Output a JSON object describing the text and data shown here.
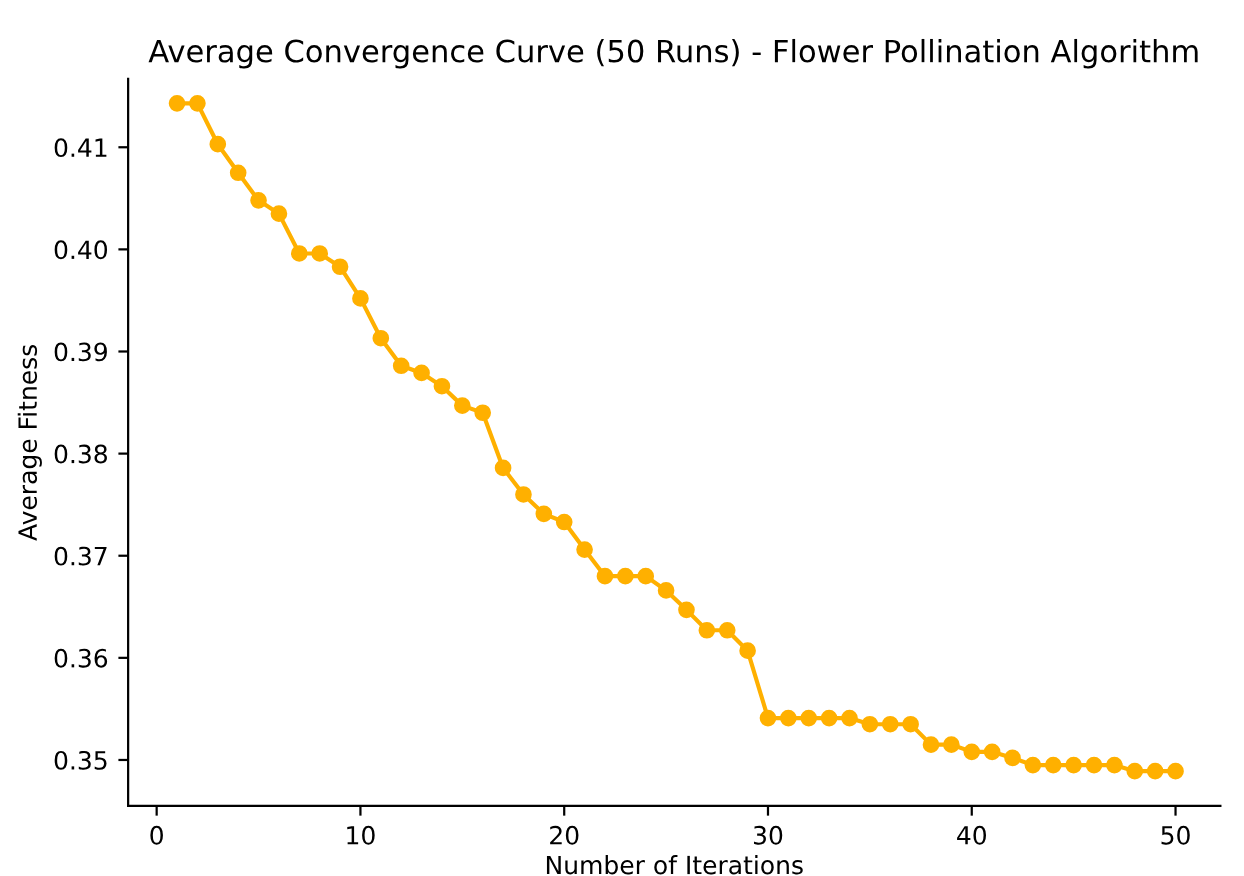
{
  "chart_data": {
    "type": "line",
    "title": "Average Convergence Curve (50 Runs) - Flower Pollination Algorithm",
    "xlabel": "Number of Iterations",
    "ylabel": "Average Fitness",
    "x": [
      1,
      2,
      3,
      4,
      5,
      6,
      7,
      8,
      9,
      10,
      11,
      12,
      13,
      14,
      15,
      16,
      17,
      18,
      19,
      20,
      21,
      22,
      23,
      24,
      25,
      26,
      27,
      28,
      29,
      30,
      31,
      32,
      33,
      34,
      35,
      36,
      37,
      38,
      39,
      40,
      41,
      42,
      43,
      44,
      45,
      46,
      47,
      48,
      49,
      50
    ],
    "series": [
      {
        "color": "#ffb000",
        "values": [
          0.4143,
          0.4143,
          0.4103,
          0.4075,
          0.4048,
          0.4035,
          0.3996,
          0.3996,
          0.3983,
          0.3952,
          0.3913,
          0.3886,
          0.3879,
          0.3866,
          0.3847,
          0.384,
          0.3786,
          0.376,
          0.3741,
          0.3733,
          0.3706,
          0.368,
          0.368,
          0.368,
          0.3666,
          0.3647,
          0.3627,
          0.3627,
          0.3607,
          0.3541,
          0.3541,
          0.3541,
          0.3541,
          0.3541,
          0.3535,
          0.3535,
          0.3535,
          0.3515,
          0.3515,
          0.3508,
          0.3508,
          0.3502,
          0.3495,
          0.3495,
          0.3495,
          0.3495,
          0.3495,
          0.3489,
          0.3489,
          0.3489
        ]
      }
    ],
    "xlim": [
      -1.4,
      52.2
    ],
    "ylim": [
      0.3455,
      0.4167
    ],
    "xticks": [
      0,
      10,
      20,
      30,
      40,
      50
    ],
    "yticks": [
      {
        "value": 0.35,
        "label": "0.35"
      },
      {
        "value": 0.36,
        "label": "0.36"
      },
      {
        "value": 0.37,
        "label": "0.37"
      },
      {
        "value": 0.38,
        "label": "0.38"
      },
      {
        "value": 0.39,
        "label": "0.39"
      },
      {
        "value": 0.4,
        "label": "0.40"
      },
      {
        "value": 0.41,
        "label": "0.41"
      }
    ],
    "marker": "circle",
    "line_style": "solid",
    "grid": false,
    "legend": false
  }
}
